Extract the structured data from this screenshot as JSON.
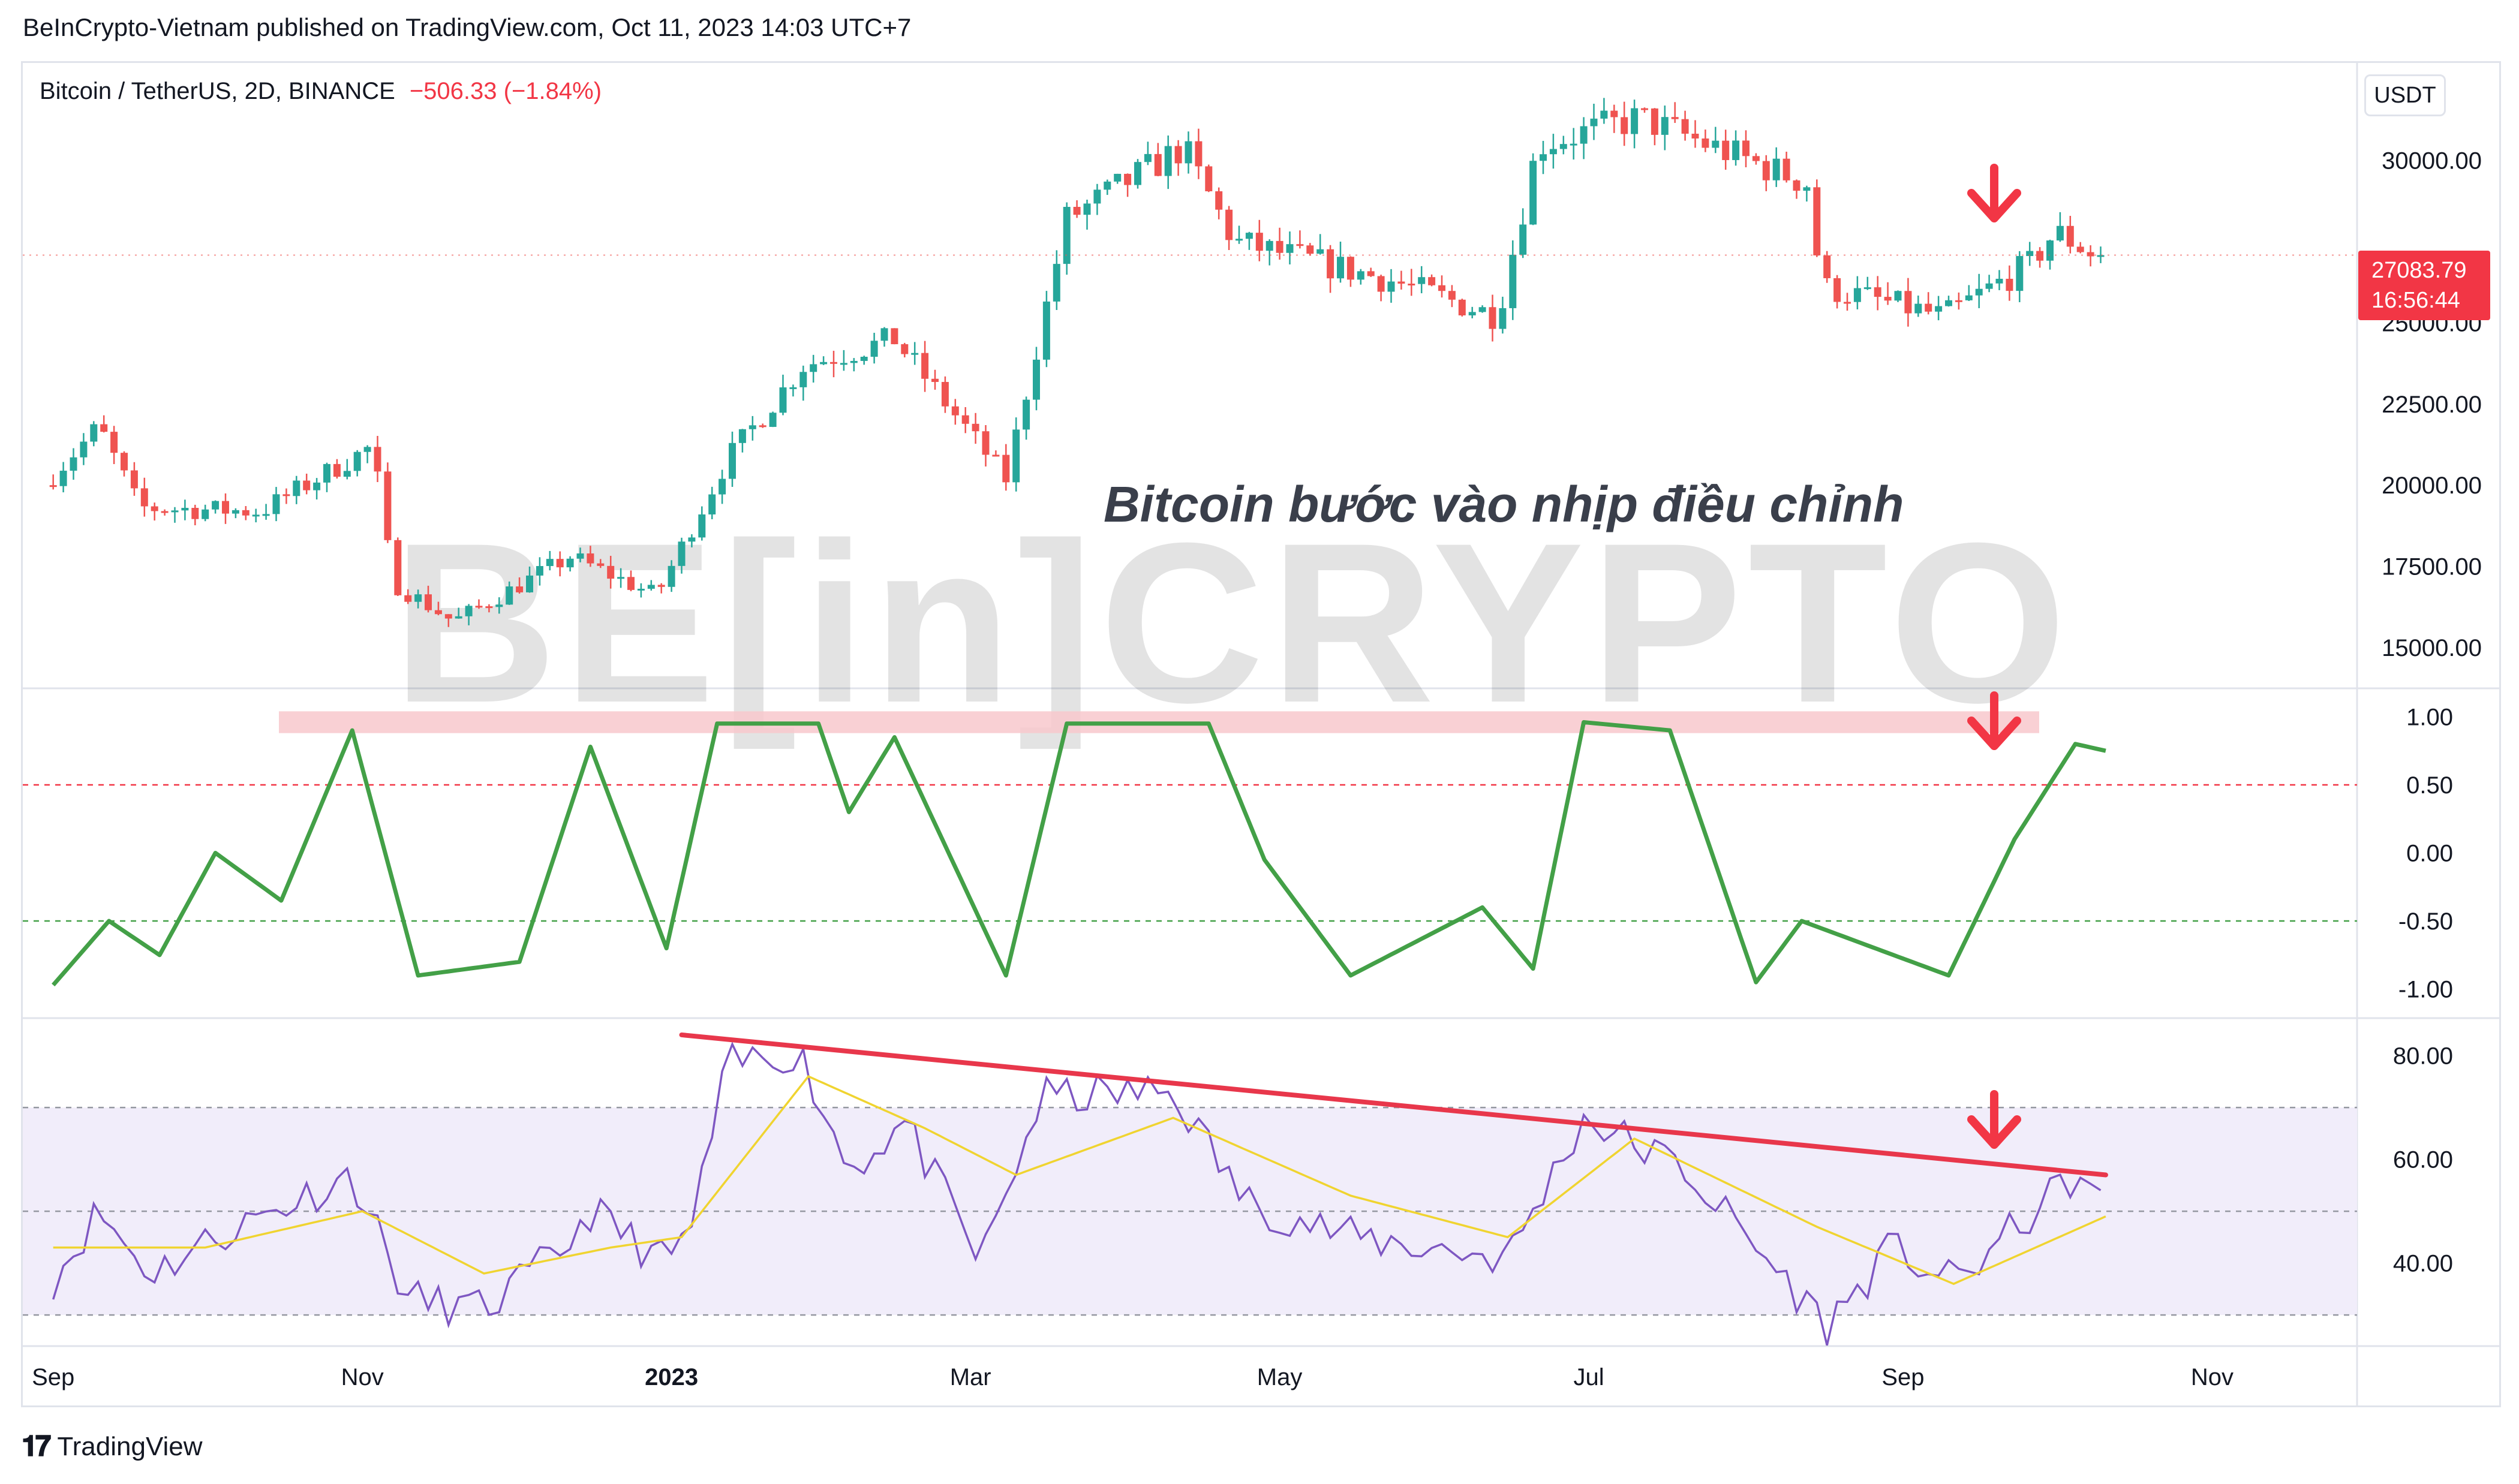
{
  "header": {
    "caption": "BeInCrypto-Vietnam published on TradingView.com, Oct 11, 2023 14:03 UTC+7"
  },
  "symbol": {
    "name": "Bitcoin / TetherUS, 2D, BINANCE",
    "change": "−506.33 (−1.84%)"
  },
  "currency_button": "USDT",
  "price_tag": {
    "price": "27083.79",
    "countdown": "16:56:44"
  },
  "annotation": "Bitcoin bước vào nhịp điều chỉnh",
  "watermark": "BE[in]CRYPTO",
  "footer": {
    "brand": "TradingView",
    "logo_icon": "tradingview-logo-icon"
  },
  "colors": {
    "up": "#26a69a",
    "down": "#ef5350",
    "oscillator": "#43a047",
    "rsi": "#7e57c2",
    "rsi_ma": "#f0d430",
    "trendline": "#e8374b",
    "zone": "#f8c8cc",
    "rsi_band": "#f1edfa",
    "arrows": "#f23645"
  },
  "chart_data": [
    {
      "type": "candlestick",
      "symbol": "Bitcoin / TetherUS, 2D, BINANCE",
      "x_ticks": [
        "Sep",
        "Nov",
        "2023",
        "Mar",
        "May",
        "Jul",
        "Sep",
        "Nov"
      ],
      "y_ticks": [
        "30000.00",
        "25000.00",
        "22500.00",
        "20000.00",
        "17500.00",
        "15000.00"
      ],
      "ylim": [
        13800,
        33000
      ],
      "last_price": 27083.79,
      "series_anchors": [
        {
          "x": "Sep 1 2022",
          "close": 20000
        },
        {
          "x": "Sep 12 2022",
          "close": 21800
        },
        {
          "x": "Sep 20 2022",
          "close": 19300
        },
        {
          "x": "Oct 14 2022",
          "close": 19200
        },
        {
          "x": "Nov 5 2022",
          "close": 21200
        },
        {
          "x": "Nov 9 2022",
          "close": 17000
        },
        {
          "x": "Nov 21 2022",
          "close": 15800
        },
        {
          "x": "Dec 14 2022",
          "close": 17800
        },
        {
          "x": "Dec 31 2022",
          "close": 16600
        },
        {
          "x": "Jan 14 2023",
          "close": 20800
        },
        {
          "x": "Jan 29 2023",
          "close": 23700
        },
        {
          "x": "Feb 16 2023",
          "close": 24500
        },
        {
          "x": "Mar 10 2023",
          "close": 20200
        },
        {
          "x": "Mar 22 2023",
          "close": 28200
        },
        {
          "x": "Apr 14 2023",
          "close": 30400
        },
        {
          "x": "Apr 24 2023",
          "close": 27500
        },
        {
          "x": "May 25 2023",
          "close": 26300
        },
        {
          "x": "Jun 15 2023",
          "close": 25200
        },
        {
          "x": "Jun 23 2023",
          "close": 30500
        },
        {
          "x": "Jul 13 2023",
          "close": 31300
        },
        {
          "x": "Aug 15 2023",
          "close": 29300
        },
        {
          "x": "Aug 18 2023",
          "close": 26100
        },
        {
          "x": "Sep 11 2023",
          "close": 25200
        },
        {
          "x": "Sep 28 2023",
          "close": 26800
        },
        {
          "x": "Oct 3 2023",
          "close": 27800
        },
        {
          "x": "Oct 11 2023",
          "close": 27080
        }
      ]
    },
    {
      "type": "line",
      "panel": "oscillator",
      "y_ticks": [
        "1.00",
        "0.50",
        "0.00",
        "-0.50",
        "-1.00"
      ],
      "ylim": [
        -1.2,
        1.2
      ],
      "reference_levels": [
        0.5,
        -0.5
      ],
      "resistance_zone": [
        0.88,
        1.04
      ],
      "series_anchors": [
        {
          "x": "Sep 1 2022",
          "y": -0.97
        },
        {
          "x": "Sep 12 2022",
          "y": -0.5
        },
        {
          "x": "Sep 22 2022",
          "y": -0.75
        },
        {
          "x": "Oct 3 2022",
          "y": 0.0
        },
        {
          "x": "Oct 16 2022",
          "y": -0.35
        },
        {
          "x": "Oct 30 2022",
          "y": 0.9
        },
        {
          "x": "Nov 12 2022",
          "y": -0.9
        },
        {
          "x": "Dec 2 2022",
          "y": -0.8
        },
        {
          "x": "Dec 16 2022",
          "y": 0.78
        },
        {
          "x": "Dec 31 2022",
          "y": -0.7
        },
        {
          "x": "Jan 10 2023",
          "y": 0.95
        },
        {
          "x": "Jan 30 2023",
          "y": 0.95
        },
        {
          "x": "Feb 5 2023",
          "y": 0.3
        },
        {
          "x": "Feb 14 2023",
          "y": 0.85
        },
        {
          "x": "Mar 8 2023",
          "y": -0.9
        },
        {
          "x": "Mar 20 2023",
          "y": 0.95
        },
        {
          "x": "Apr 17 2023",
          "y": 0.95
        },
        {
          "x": "Apr 28 2023",
          "y": -0.05
        },
        {
          "x": "May 15 2023",
          "y": -0.9
        },
        {
          "x": "Jun 10 2023",
          "y": -0.4
        },
        {
          "x": "Jun 20 2023",
          "y": -0.85
        },
        {
          "x": "Jun 30 2023",
          "y": 0.96
        },
        {
          "x": "Jul 17 2023",
          "y": 0.9
        },
        {
          "x": "Aug 3 2023",
          "y": -0.95
        },
        {
          "x": "Aug 12 2023",
          "y": -0.5
        },
        {
          "x": "Sep 10 2023",
          "y": -0.9
        },
        {
          "x": "Sep 23 2023",
          "y": 0.1
        },
        {
          "x": "Oct 5 2023",
          "y": 0.8
        },
        {
          "x": "Oct 11 2023",
          "y": 0.75
        }
      ]
    },
    {
      "type": "line",
      "panel": "rsi",
      "y_ticks": [
        "80.00",
        "60.00",
        "40.00"
      ],
      "ylim": [
        24,
        87
      ],
      "band": [
        30,
        70
      ],
      "midline": 50,
      "series": [
        {
          "values": [
            {
              "x": "Sep 1 2022",
              "y": 37
            },
            {
              "x": "Sep 10 2022",
              "y": 50
            },
            {
              "x": "Sep 20 2022",
              "y": 38
            },
            {
              "x": "Oct 5 2022",
              "y": 46
            },
            {
              "x": "Oct 30 2022",
              "y": 57
            },
            {
              "x": "Nov 10 2022",
              "y": 33
            },
            {
              "x": "Nov 25 2022",
              "y": 31
            },
            {
              "x": "Dec 10 2022",
              "y": 42
            },
            {
              "x": "Dec 16 2022",
              "y": 50
            },
            {
              "x": "Dec 31 2022",
              "y": 40
            },
            {
              "x": "Jan 5 2023",
              "y": 47
            },
            {
              "x": "Jan 12 2023",
              "y": 78
            },
            {
              "x": "Jan 26 2023",
              "y": 81
            },
            {
              "x": "Feb 5 2023",
              "y": 58
            },
            {
              "x": "Feb 16 2023",
              "y": 67
            },
            {
              "x": "Mar 3 2023",
              "y": 40
            },
            {
              "x": "Mar 15 2023",
              "y": 72
            },
            {
              "x": "Apr 10 2023",
              "y": 73
            },
            {
              "x": "Apr 24 2023",
              "y": 52
            },
            {
              "x": "May 15 2023",
              "y": 45
            },
            {
              "x": "Jun 15 2023",
              "y": 41
            },
            {
              "x": "Jun 30 2023",
              "y": 68
            },
            {
              "x": "Jul 20 2023",
              "y": 58
            },
            {
              "x": "Aug 17 2023",
              "y": 28
            },
            {
              "x": "Aug 30 2023",
              "y": 43
            },
            {
              "x": "Sep 11 2023",
              "y": 36
            },
            {
              "x": "Oct 5 2023",
              "y": 57
            },
            {
              "x": "Oct 11 2023",
              "y": 50
            }
          ]
        },
        {
          "values": [
            {
              "x": "Sep 1 2022",
              "y": 43
            },
            {
              "x": "Oct 1 2022",
              "y": 43
            },
            {
              "x": "Nov 1 2022",
              "y": 50
            },
            {
              "x": "Nov 25 2022",
              "y": 38
            },
            {
              "x": "Dec 20 2022",
              "y": 43
            },
            {
              "x": "Jan 3 2023",
              "y": 45
            },
            {
              "x": "Jan 28 2023",
              "y": 76
            },
            {
              "x": "Feb 20 2023",
              "y": 66
            },
            {
              "x": "Mar 10 2023",
              "y": 57
            },
            {
              "x": "Apr 10 2023",
              "y": 68
            },
            {
              "x": "May 15 2023",
              "y": 53
            },
            {
              "x": "Jun 15 2023",
              "y": 45
            },
            {
              "x": "Jul 10 2023",
              "y": 64
            },
            {
              "x": "Aug 15 2023",
              "y": 47
            },
            {
              "x": "Sep 11 2023",
              "y": 36
            },
            {
              "x": "Oct 11 2023",
              "y": 49
            }
          ]
        }
      ],
      "trendline": [
        {
          "x": "Jan 3 2023",
          "y": 84
        },
        {
          "x": "Oct 11 2023",
          "y": 57
        }
      ]
    }
  ]
}
